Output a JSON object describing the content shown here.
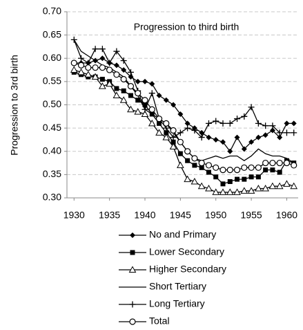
{
  "chart_data": {
    "type": "line",
    "title": "Progression to third birth",
    "y_label": "Progression to 3rd birth",
    "x": [
      1930,
      1931,
      1932,
      1933,
      1934,
      1935,
      1936,
      1937,
      1938,
      1939,
      1940,
      1941,
      1942,
      1943,
      1944,
      1945,
      1946,
      1947,
      1948,
      1949,
      1950,
      1951,
      1952,
      1953,
      1954,
      1955,
      1956,
      1957,
      1958,
      1959,
      1960,
      1961
    ],
    "xlim": [
      1929,
      1962
    ],
    "xticks": [
      1930,
      1935,
      1940,
      1945,
      1950,
      1955,
      1960
    ],
    "ylim": [
      0.3,
      0.7
    ],
    "yticks": [
      {
        "value": 0.3,
        "label": "0.30"
      },
      {
        "value": 0.35,
        "label": "0.35"
      },
      {
        "value": 0.4,
        "label": "0.40"
      },
      {
        "value": 0.45,
        "label": "0.45"
      },
      {
        "value": 0.5,
        "label": "0.50"
      },
      {
        "value": 0.55,
        "label": "0.55"
      },
      {
        "value": 0.6,
        "label": "0.60"
      },
      {
        "value": 0.65,
        "label": "0.65"
      },
      {
        "value": 0.7,
        "label": "0.70"
      }
    ],
    "grid": true,
    "legend": "bottom",
    "series": [
      {
        "name": "No and Primary",
        "color": "#000000",
        "marker": "diamond",
        "values": [
          0.59,
          0.59,
          0.59,
          0.595,
          0.6,
          0.59,
          0.585,
          0.575,
          0.56,
          0.55,
          0.55,
          0.545,
          0.52,
          0.51,
          0.5,
          0.48,
          0.46,
          0.45,
          0.44,
          0.43,
          0.425,
          0.42,
          0.4,
          0.43,
          0.405,
          0.42,
          0.43,
          0.435,
          0.445,
          0.43,
          0.46,
          0.46
        ]
      },
      {
        "name": "Lower Secondary",
        "color": "#000000",
        "marker": "square",
        "values": [
          0.57,
          0.565,
          0.56,
          0.56,
          0.555,
          0.55,
          0.535,
          0.53,
          0.52,
          0.51,
          0.5,
          0.48,
          0.46,
          0.44,
          0.42,
          0.395,
          0.38,
          0.37,
          0.365,
          0.355,
          0.345,
          0.33,
          0.335,
          0.34,
          0.34,
          0.345,
          0.345,
          0.36,
          0.36,
          0.355,
          0.38,
          0.375
        ]
      },
      {
        "name": "Higher Secondary",
        "color": "#000000",
        "marker": "triangle",
        "values": [
          0.575,
          0.57,
          0.565,
          0.56,
          0.54,
          0.545,
          0.52,
          0.51,
          0.49,
          0.485,
          0.48,
          0.46,
          0.44,
          0.43,
          0.41,
          0.37,
          0.34,
          0.335,
          0.325,
          0.32,
          0.312,
          0.312,
          0.312,
          0.312,
          0.315,
          0.315,
          0.32,
          0.32,
          0.325,
          0.325,
          0.33,
          0.325
        ]
      },
      {
        "name": "Short Tertiary",
        "color": "#000000",
        "marker": "none",
        "values": [
          0.64,
          0.615,
          0.605,
          0.595,
          0.585,
          0.58,
          0.57,
          0.56,
          0.54,
          0.52,
          0.49,
          0.48,
          0.47,
          0.46,
          0.44,
          0.42,
          0.4,
          0.385,
          0.38,
          0.385,
          0.39,
          0.385,
          0.39,
          0.39,
          0.38,
          0.39,
          0.405,
          0.395,
          0.39,
          0.39,
          0.385,
          0.375
        ]
      },
      {
        "name": "Long Tertiary",
        "color": "#000000",
        "marker": "plus",
        "values": [
          0.64,
          0.6,
          0.59,
          0.62,
          0.62,
          0.59,
          0.615,
          0.595,
          0.57,
          0.53,
          0.49,
          0.525,
          0.47,
          0.45,
          0.43,
          0.44,
          0.45,
          0.445,
          0.43,
          0.46,
          0.465,
          0.46,
          0.46,
          0.47,
          0.475,
          0.495,
          0.46,
          0.455,
          0.455,
          0.44,
          0.44,
          0.44
        ]
      },
      {
        "name": "Total",
        "color": "#000000",
        "marker": "circle",
        "values": [
          0.59,
          0.585,
          0.58,
          0.58,
          0.58,
          0.575,
          0.565,
          0.555,
          0.54,
          0.525,
          0.51,
          0.49,
          0.47,
          0.46,
          0.445,
          0.42,
          0.4,
          0.385,
          0.375,
          0.37,
          0.365,
          0.36,
          0.36,
          0.36,
          0.365,
          0.365,
          0.365,
          0.375,
          0.375,
          0.375,
          0.375,
          0.37
        ]
      }
    ]
  }
}
